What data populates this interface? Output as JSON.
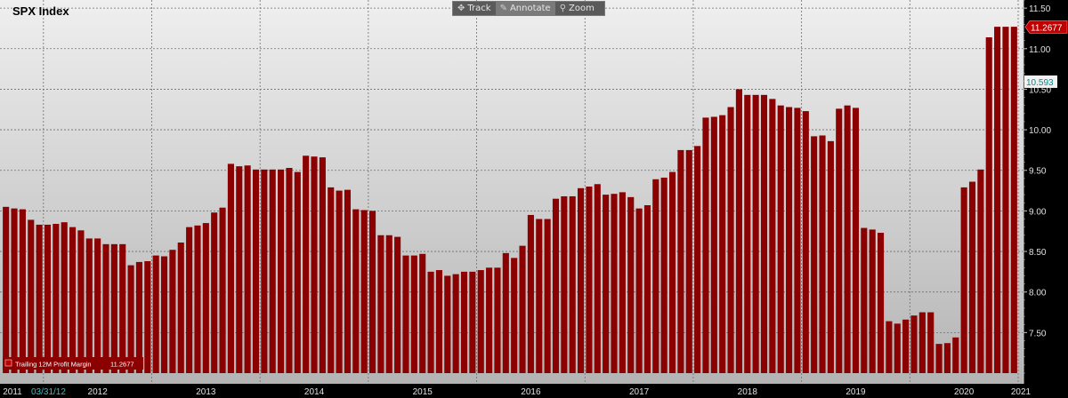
{
  "title": "SPX Index",
  "toolbar": {
    "track": "Track",
    "annotate": "Annotate",
    "zoom": "Zoom"
  },
  "date_marker": "03/31/12",
  "colors": {
    "bar": "#8b0000",
    "badge_last": "#c00000",
    "badge_secondary": "#008b8b"
  },
  "chart_data": {
    "type": "bar",
    "title": "SPX Index",
    "series": [
      {
        "name": "Trailing 12M Profit Margin",
        "last_label": "11.2677",
        "values": [
          9.05,
          9.03,
          9.02,
          8.89,
          8.83,
          8.83,
          8.84,
          8.86,
          8.8,
          8.76,
          8.66,
          8.66,
          8.59,
          8.59,
          8.59,
          8.33,
          8.37,
          8.38,
          8.45,
          8.44,
          8.52,
          8.61,
          8.8,
          8.82,
          8.85,
          8.98,
          9.04,
          9.58,
          9.55,
          9.56,
          9.51,
          9.51,
          9.51,
          9.51,
          9.53,
          9.48,
          9.68,
          9.67,
          9.66,
          9.29,
          9.25,
          9.26,
          9.02,
          9.01,
          9.0,
          8.7,
          8.7,
          8.68,
          8.45,
          8.45,
          8.47,
          8.25,
          8.27,
          8.2,
          8.22,
          8.25,
          8.25,
          8.27,
          8.3,
          8.3,
          8.48,
          8.42,
          8.57,
          8.95,
          8.9,
          8.9,
          9.15,
          9.18,
          9.18,
          9.28,
          9.3,
          9.33,
          9.2,
          9.21,
          9.23,
          9.17,
          9.03,
          9.07,
          9.39,
          9.41,
          9.48,
          9.75,
          9.75,
          9.8,
          10.15,
          10.16,
          10.18,
          10.28,
          10.5,
          10.43,
          10.43,
          10.43,
          10.38,
          10.3,
          10.28,
          10.27,
          10.23,
          9.92,
          9.93,
          9.86,
          10.26,
          10.3,
          10.27,
          8.79,
          8.77,
          8.73,
          7.64,
          7.61,
          7.66,
          7.71,
          7.75,
          7.75,
          7.36,
          7.37,
          7.44,
          9.29,
          9.36,
          9.51,
          11.14,
          11.27,
          11.27,
          11.27
        ]
      }
    ],
    "xlabel": "",
    "ylabel": "",
    "year_ticks": [
      "2011",
      "2012",
      "2013",
      "2014",
      "2015",
      "2016",
      "2017",
      "2018",
      "2019",
      "2020",
      "2021"
    ],
    "year_start_index": [
      -1,
      4,
      17,
      30,
      43,
      56,
      69,
      82,
      95,
      108,
      121
    ],
    "y_ticks": [
      "7.50",
      "8.00",
      "8.50",
      "9.00",
      "9.50",
      "10.00",
      "10.50",
      "11.00",
      "11.50"
    ],
    "ylim": [
      7.0,
      11.6
    ],
    "y_axis_side": "right",
    "grid": true,
    "legend": "bottom-left",
    "badges": [
      {
        "value": 11.2677,
        "label": "11.2677",
        "style": "last"
      },
      {
        "value": 10.593,
        "label": "10.593",
        "style": "secondary"
      }
    ]
  }
}
